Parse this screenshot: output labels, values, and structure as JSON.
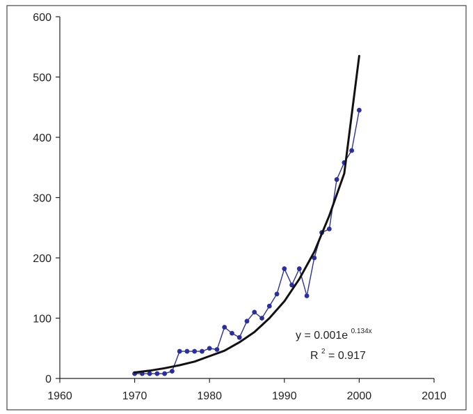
{
  "chart_data": {
    "type": "scatter",
    "xlim": [
      1960,
      2010
    ],
    "ylim": [
      0,
      600
    ],
    "x_ticks": [
      1960,
      1970,
      1980,
      1990,
      2000,
      2010
    ],
    "y_ticks": [
      0,
      100,
      200,
      300,
      400,
      500,
      600
    ],
    "x_tick_labels": [
      "1960",
      "1970",
      "1980",
      "1990",
      "2000",
      "2010"
    ],
    "y_tick_labels": [
      "0",
      "100",
      "200",
      "300",
      "400",
      "500",
      "600"
    ],
    "grid": false,
    "legend": null,
    "series": [
      {
        "kind": "observed",
        "style": "line-with-markers",
        "color": "#2b2e9e",
        "points": [
          [
            1970,
            8
          ],
          [
            1971,
            8
          ],
          [
            1972,
            8
          ],
          [
            1973,
            8
          ],
          [
            1974,
            8
          ],
          [
            1975,
            12
          ],
          [
            1976,
            45
          ],
          [
            1977,
            45
          ],
          [
            1978,
            45
          ],
          [
            1979,
            45
          ],
          [
            1980,
            50
          ],
          [
            1981,
            48
          ],
          [
            1982,
            85
          ],
          [
            1983,
            75
          ],
          [
            1984,
            68
          ],
          [
            1985,
            95
          ],
          [
            1986,
            110
          ],
          [
            1987,
            100
          ],
          [
            1988,
            120
          ],
          [
            1989,
            140
          ],
          [
            1990,
            182
          ],
          [
            1991,
            155
          ],
          [
            1992,
            182
          ],
          [
            1993,
            137
          ],
          [
            1994,
            200
          ],
          [
            1995,
            242
          ],
          [
            1996,
            248
          ],
          [
            1997,
            330
          ],
          [
            1998,
            358
          ],
          [
            1999,
            378
          ],
          [
            2000,
            445
          ]
        ]
      },
      {
        "kind": "trendline",
        "style": "line",
        "color": "#111111",
        "points": [
          [
            1970,
            10
          ],
          [
            1972,
            13
          ],
          [
            1974,
            17
          ],
          [
            1976,
            22
          ],
          [
            1978,
            28
          ],
          [
            1980,
            37
          ],
          [
            1982,
            46
          ],
          [
            1984,
            60
          ],
          [
            1986,
            77
          ],
          [
            1988,
            100
          ],
          [
            1990,
            128
          ],
          [
            1992,
            165
          ],
          [
            1994,
            210
          ],
          [
            1996,
            270
          ],
          [
            1998,
            340
          ],
          [
            2000,
            535
          ]
        ]
      }
    ],
    "annotations": {
      "equation_main": "y = 0.001e",
      "equation_exponent": "0.134x",
      "r2_label": "R",
      "r2_exponent": "2",
      "r2_value": " = 0.917"
    }
  }
}
